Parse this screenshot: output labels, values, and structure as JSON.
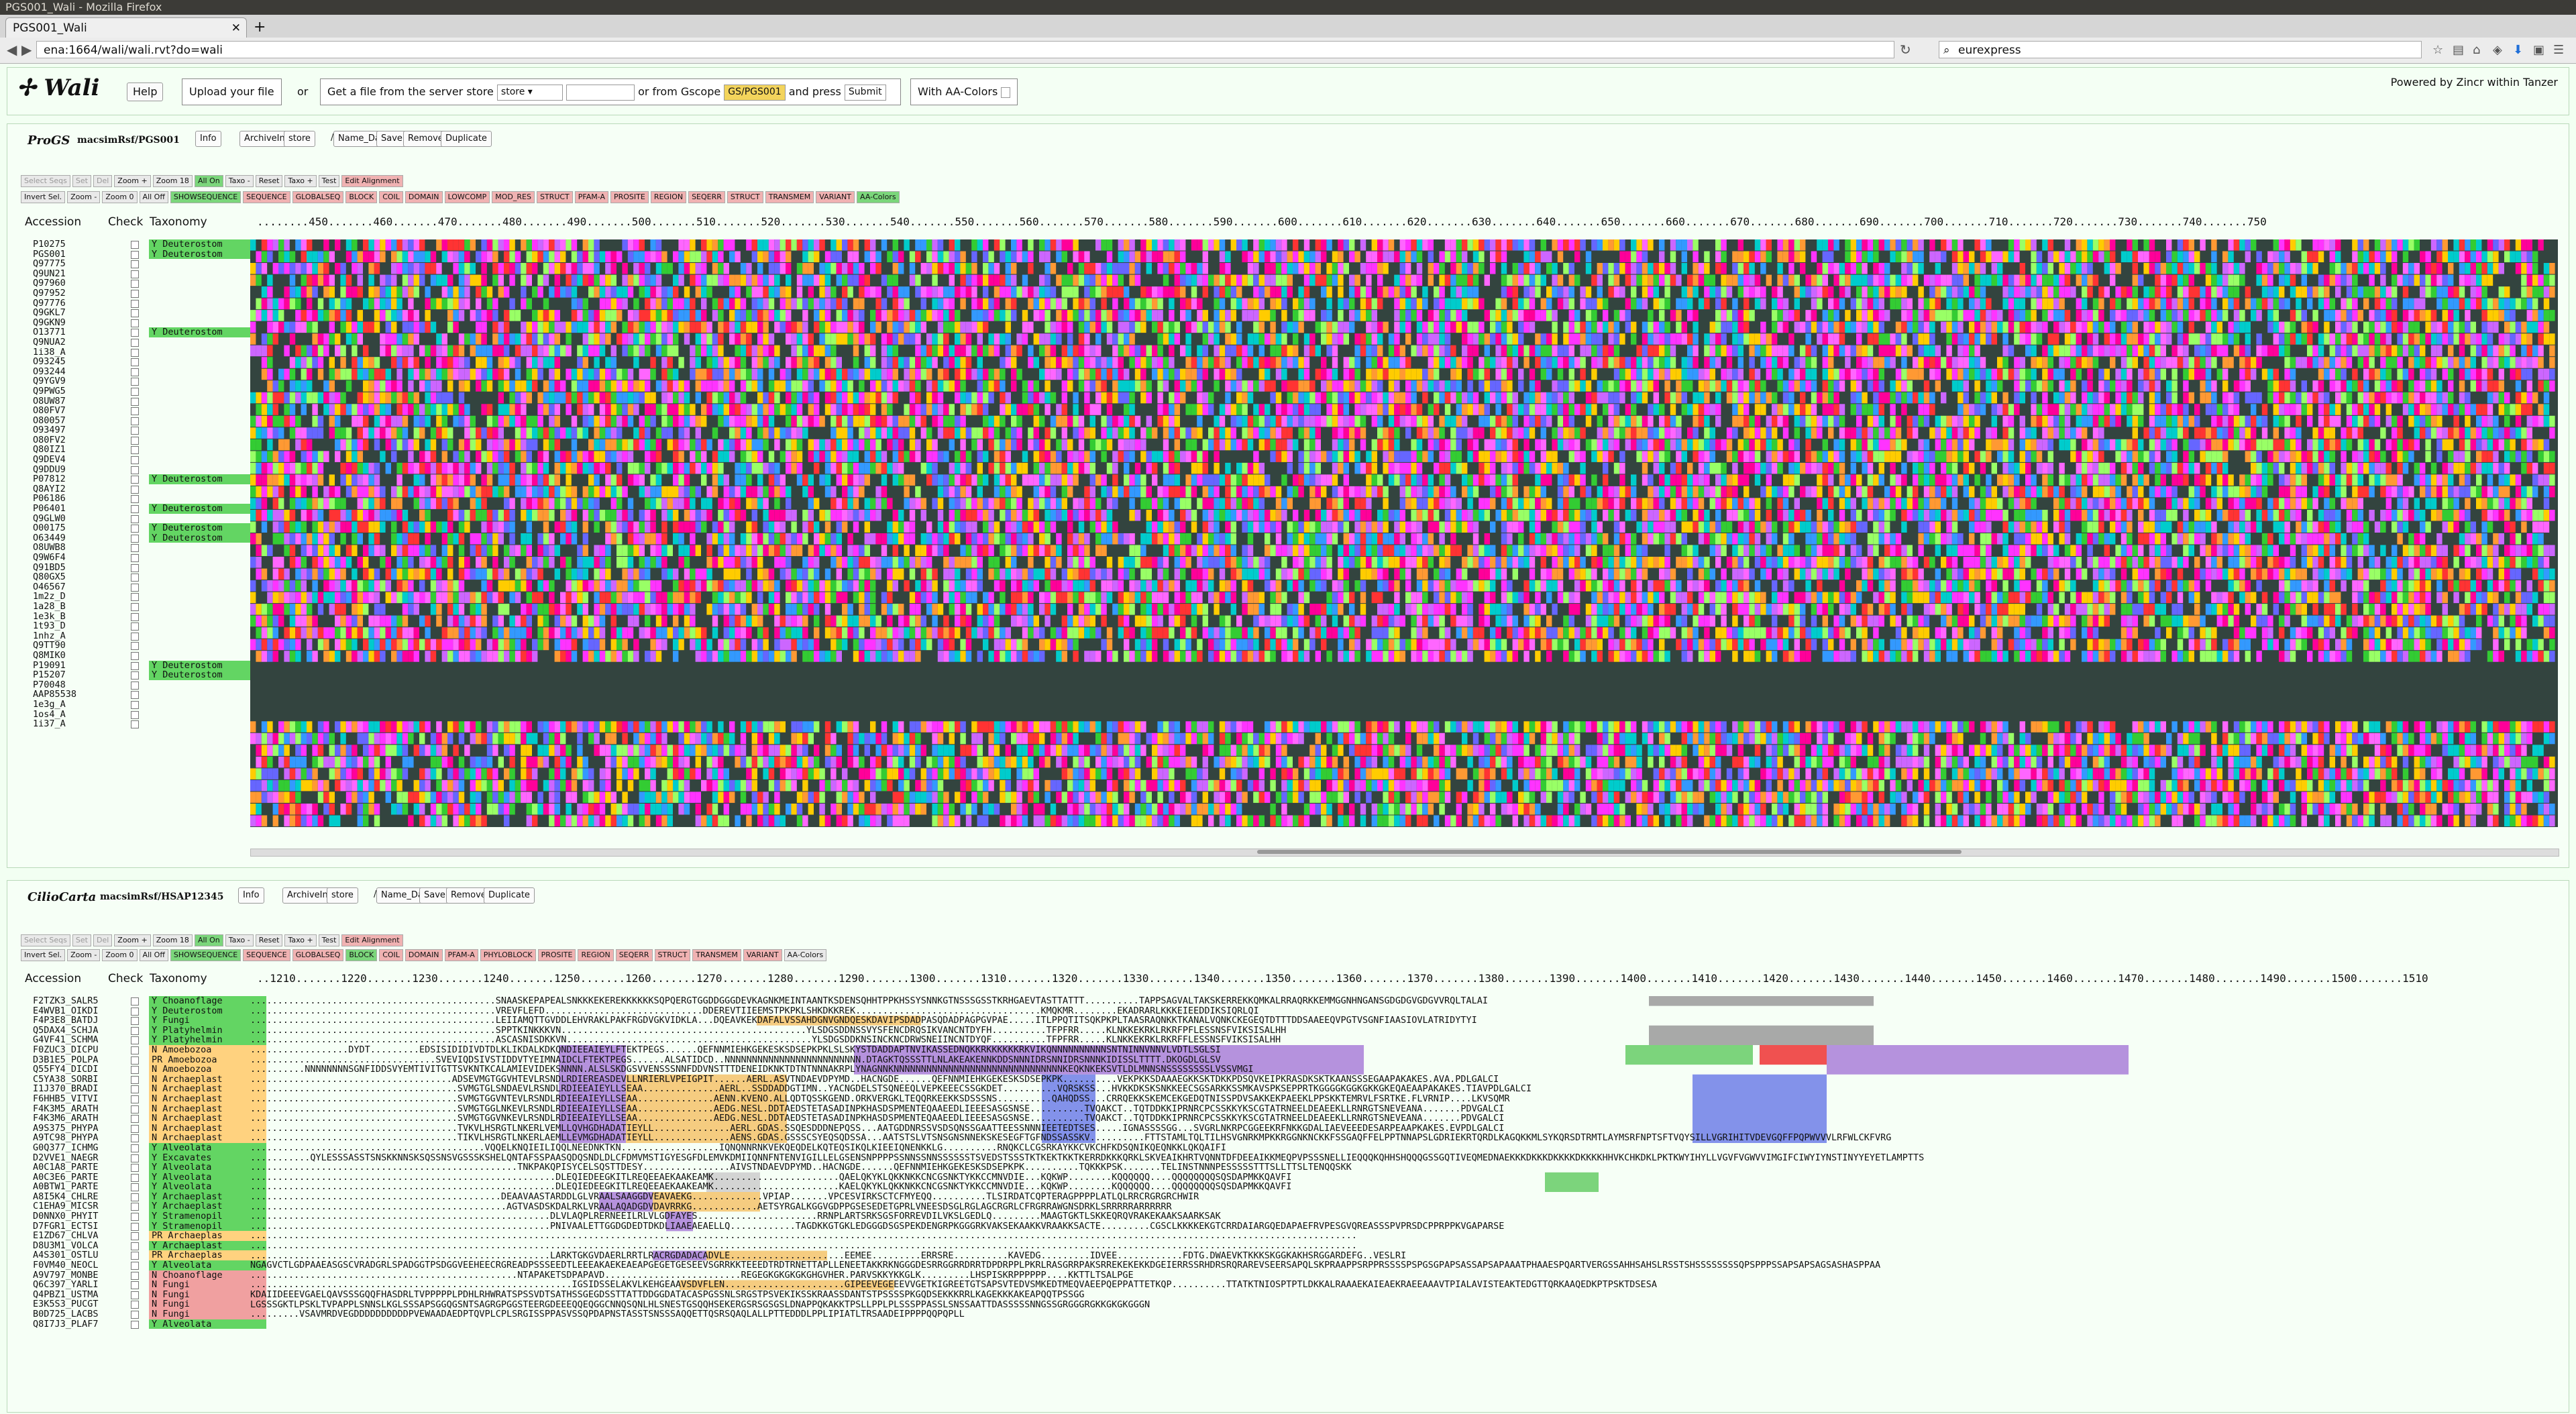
{
  "window": {
    "title": "PGS001_Wali - Mozilla Firefox",
    "tab_title": "PGS001_Wali",
    "url": "ena:1664/wali/wali.rvt?do=wali",
    "search": "eurexpress"
  },
  "header": {
    "logo": "Wali",
    "help": "Help",
    "upload": "Upload your file",
    "or1": "or",
    "getfile": "Get a file from the server store",
    "store": "store",
    "orfrom": "or from Gscope",
    "gscope": "GS/PGS001",
    "andpress": "and press",
    "submit": "Submit",
    "aacolors": "With AA-Colors",
    "powered": "Powered by Zincr within Tanzer"
  },
  "panel1": {
    "name": "ProGS",
    "path": "macsimRsf/PGS001",
    "buttons": [
      "Info",
      "ArchiveIn",
      "store",
      "/",
      "Name_Date",
      "Save",
      "Remove",
      "Duplicate"
    ],
    "tools_row1": [
      "Select Seqs",
      "Set",
      "Del",
      "Zoom +",
      "Zoom 18",
      "All On",
      "Taxo -",
      "Reset",
      "Taxo +",
      "Test",
      "Edit Alignment"
    ],
    "tools_row2": [
      "Invert Sel.",
      "Zoom -",
      "Zoom  0",
      "All Off",
      "SHOWSEQUENCE",
      "SEQUENCE",
      "GLOBALSEQ",
      "BLOCK",
      "COIL",
      "DOMAIN",
      "LOWCOMP",
      "MOD_RES",
      "STRUCT",
      "PFAM-A",
      "PROSITE",
      "REGION",
      "SEQERR",
      "STRUCT",
      "TRANSMEM",
      "VARIANT",
      "AA-Colors"
    ],
    "cols": [
      "Accession",
      "Check",
      "Taxonomy"
    ],
    "ruler": "........450.......460.......470.......480.......490.......500.......510.......520.......530.......540.......550.......560.......570.......580.......590.......600.......610.......620.......630.......640.......650.......660.......670.......680.......690.......700.......710.......720.......730.......740.......750"
  },
  "panel2": {
    "name": "CilioCarta",
    "path": "macsimRsf/HSAP12345",
    "buttons": [
      "Info",
      "ArchiveIn",
      "store",
      "/",
      "Name_Date",
      "Save",
      "Remove",
      "Duplicate"
    ],
    "tools_row1": [
      "Select Seqs",
      "Set",
      "Del",
      "Zoom +",
      "Zoom 18",
      "All On",
      "Taxo -",
      "Reset",
      "Taxo +",
      "Test",
      "Edit Alignment"
    ],
    "tools_row2": [
      "Invert Sel.",
      "Zoom -",
      "Zoom  0",
      "All Off",
      "SHOWSEQUENCE",
      "SEQUENCE",
      "GLOBALSEQ",
      "BLOCK",
      "COIL",
      "DOMAIN",
      "PFAM-A",
      "PHYLOBLOCK",
      "PROSITE",
      "REGION",
      "SEQERR",
      "STRUCT",
      "TRANSMEM",
      "VARIANT",
      "AA-Colors"
    ],
    "cols": [
      "Accession",
      "Check",
      "Taxonomy"
    ],
    "ruler": "..1210.......1220.......1230.......1240.......1250.......1260.......1270.......1280.......1290.......1300.......1310.......1320.......1330.......1340.......1350.......1360.......1370.......1380.......1390.......1400.......1410.......1420.......1430.......1440.......1450.......1460.......1470.......1480.......1490.......1500.......1510"
  },
  "seqs1": [
    {
      "acc": "P10275",
      "tax": "Y Deuterostom",
      "c": "green"
    },
    {
      "acc": "PGS001",
      "tax": "Y Deuterostom",
      "c": "green"
    },
    {
      "acc": "Q97775",
      "tax": "",
      "c": ""
    },
    {
      "acc": "Q9UN21",
      "tax": "",
      "c": ""
    },
    {
      "acc": "Q97960",
      "tax": "",
      "c": ""
    },
    {
      "acc": "Q97952",
      "tax": "",
      "c": ""
    },
    {
      "acc": "Q97776",
      "tax": "",
      "c": ""
    },
    {
      "acc": "Q9GKL7",
      "tax": "",
      "c": ""
    },
    {
      "acc": "Q9GKN9",
      "tax": "",
      "c": ""
    },
    {
      "acc": "O13771",
      "tax": "Y Deuterostom",
      "c": "green"
    },
    {
      "acc": "Q9NUA2",
      "tax": "",
      "c": ""
    },
    {
      "acc": "1i38_A",
      "tax": "",
      "c": ""
    },
    {
      "acc": "O93245",
      "tax": "",
      "c": ""
    },
    {
      "acc": "O93244",
      "tax": "",
      "c": ""
    },
    {
      "acc": "Q9YGV9",
      "tax": "",
      "c": ""
    },
    {
      "acc": "Q9PWG5",
      "tax": "",
      "c": ""
    },
    {
      "acc": "O8UW87",
      "tax": "",
      "c": ""
    },
    {
      "acc": "O80FV7",
      "tax": "",
      "c": ""
    },
    {
      "acc": "O80057",
      "tax": "",
      "c": ""
    },
    {
      "acc": "O93497",
      "tax": "",
      "c": ""
    },
    {
      "acc": "O80FV2",
      "tax": "",
      "c": ""
    },
    {
      "acc": "Q80IZ1",
      "tax": "",
      "c": ""
    },
    {
      "acc": "Q9DEV4",
      "tax": "",
      "c": ""
    },
    {
      "acc": "Q9DDU9",
      "tax": "",
      "c": ""
    },
    {
      "acc": "P07812",
      "tax": "Y Deuterostom",
      "c": "green"
    },
    {
      "acc": "Q8AYI2",
      "tax": "",
      "c": ""
    },
    {
      "acc": "P06186",
      "tax": "",
      "c": ""
    },
    {
      "acc": "P06401",
      "tax": "Y Deuterostom",
      "c": "green"
    },
    {
      "acc": "Q9GLW0",
      "tax": "",
      "c": ""
    },
    {
      "acc": "O00175",
      "tax": "Y Deuterostom",
      "c": "green"
    },
    {
      "acc": "O63449",
      "tax": "Y Deuterostom",
      "c": "green"
    },
    {
      "acc": "O8UWB8",
      "tax": "",
      "c": ""
    },
    {
      "acc": "Q9W6F4",
      "tax": "",
      "c": ""
    },
    {
      "acc": "Q91BD5",
      "tax": "",
      "c": ""
    },
    {
      "acc": "Q80GX5",
      "tax": "",
      "c": ""
    },
    {
      "acc": "O46567",
      "tax": "",
      "c": ""
    },
    {
      "acc": "1m2z_D",
      "tax": "",
      "c": ""
    },
    {
      "acc": "1a28_B",
      "tax": "",
      "c": ""
    },
    {
      "acc": "1e3k_B",
      "tax": "",
      "c": ""
    },
    {
      "acc": "1t93_D",
      "tax": "",
      "c": ""
    },
    {
      "acc": "1nhz_A",
      "tax": "",
      "c": ""
    },
    {
      "acc": "Q9TT90",
      "tax": "",
      "c": ""
    },
    {
      "acc": "Q8MIK0",
      "tax": "",
      "c": ""
    },
    {
      "acc": "P19091",
      "tax": "Y Deuterostom",
      "c": "green"
    },
    {
      "acc": "P15207",
      "tax": "Y Deuterostom",
      "c": "green"
    },
    {
      "acc": "P70048",
      "tax": "",
      "c": ""
    },
    {
      "acc": "AAP85538",
      "tax": "",
      "c": ""
    },
    {
      "acc": "1e3g_A",
      "tax": "",
      "c": ""
    },
    {
      "acc": "1os4_A",
      "tax": "",
      "c": ""
    },
    {
      "acc": "1i37_A",
      "tax": "",
      "c": ""
    }
  ],
  "seqs2": [
    {
      "acc": "F2TZK3_SALR5",
      "tax": "Y Choanoflage",
      "c": "green"
    },
    {
      "acc": "E4WVB1_OIKDI",
      "tax": "Y Deuterostom",
      "c": "green"
    },
    {
      "acc": "F4P3E8_BATDJ",
      "tax": "Y Fungi",
      "c": "green"
    },
    {
      "acc": "Q5DAX4_SCHJA",
      "tax": "Y Platyhelmin",
      "c": "green"
    },
    {
      "acc": "G4VF41_SCHMA",
      "tax": "Y Platyhelmin",
      "c": "green"
    },
    {
      "acc": "F0ZUC3_DICPU",
      "tax": "N Amoebozoa",
      "c": "orange"
    },
    {
      "acc": "D3B1E5_POLPA",
      "tax": "PR Amoebozoa",
      "c": "orange"
    },
    {
      "acc": "Q55FY4_DICDI",
      "tax": "N Amoebozoa",
      "c": "orange"
    },
    {
      "acc": "C5YA38_SORBI",
      "tax": "N Archaeplast",
      "c": "orange"
    },
    {
      "acc": "I1J370_BRADI",
      "tax": "N Archaeplast",
      "c": "orange"
    },
    {
      "acc": "F6HHB5_VITVI",
      "tax": "N Archaeplast",
      "c": "orange"
    },
    {
      "acc": "F4K3M5_ARATH",
      "tax": "N Archaeplast",
      "c": "orange"
    },
    {
      "acc": "F4K3M6_ARATH",
      "tax": "N Archaeplast",
      "c": "orange"
    },
    {
      "acc": "A9S375_PHYPA",
      "tax": "N Archaeplast",
      "c": "orange"
    },
    {
      "acc": "A9TC98_PHYPA",
      "tax": "N Archaeplast",
      "c": "orange"
    },
    {
      "acc": "G0Q377_ICHMG",
      "tax": "Y Alveolata",
      "c": "green"
    },
    {
      "acc": "D2VVE1_NAEGR",
      "tax": "Y Excavates",
      "c": "green"
    },
    {
      "acc": "A0C1A8_PARTE",
      "tax": "Y Alveolata",
      "c": "green"
    },
    {
      "acc": "A0C3E6_PARTE",
      "tax": "Y Alveolata",
      "c": "green"
    },
    {
      "acc": "A0BTW1_PARTE",
      "tax": "Y Alveolata",
      "c": "green"
    },
    {
      "acc": "A8I5K4_CHLRE",
      "tax": "Y Archaeplast",
      "c": "green"
    },
    {
      "acc": "C1EHA9_MICSR",
      "tax": "Y Archaeplast",
      "c": "green"
    },
    {
      "acc": "D0NNX0_PHYIT",
      "tax": "Y Stramenopil",
      "c": "green"
    },
    {
      "acc": "D7FGR1_ECTSI",
      "tax": "Y Stramenopil",
      "c": "green"
    },
    {
      "acc": "E1ZD67_CHLVA",
      "tax": "PR Archaeplas",
      "c": "orange"
    },
    {
      "acc": "D8U3M1_VOLCA",
      "tax": "Y Archaeplast",
      "c": "green"
    },
    {
      "acc": "A4S301_OSTLU",
      "tax": "PR Archaeplas",
      "c": "orange"
    },
    {
      "acc": "F0VM40_NEOCL",
      "tax": "Y Alveolata",
      "c": "green"
    },
    {
      "acc": "A9V797_MONBE",
      "tax": "N Choanoflage",
      "c": "red"
    },
    {
      "acc": "Q6C397_YARLI",
      "tax": "N Fungi",
      "c": "red"
    },
    {
      "acc": "Q4PBZ1_USTMA",
      "tax": "N Fungi",
      "c": "red"
    },
    {
      "acc": "E3K5S3_PUCGT",
      "tax": "N Fungi",
      "c": "red"
    },
    {
      "acc": "B0D725_LACBS",
      "tax": "N Fungi",
      "c": "red"
    },
    {
      "acc": "Q8I7J3_PLAF7",
      "tax": "Y Alveolata",
      "c": "green"
    }
  ],
  "aln2": [
    ".............................................SNAASKEPAPEALSNKKKEKEREKKKKKKSQPQERGTGGDDGGGDEVKAGNKMEINTAANTKSDENSQHHTPPKHSSYSNNKGTNSSSGSSTKRHGAEVTASTTATTT..........TAPPSAGVALTAKSKERREKKQMKALRRAQRKKEMMGGNHNGANSGDGDGVGDGVVRQLTALAI",
    ".............................................VREVFLEFD.............................DDEREVTIIEEMSTPKPKLSHKDKKREK..................................KMQKMR........EKADRARLKKKEIEEDDIKSIQRLQI",
    ".............................................LEIIAMQTTGVDDLEHVRAKLPAKFRGDVGKVIDKLA...DQEAVKEKDAFALVSSAHDGNVGNDQESKDAVIPSDADPASQDADPAGPGVPAE.....ITLPPQTITSQKPKPLTAASRAQNKKTKANALVQNKCKEGEQTDTTTDDSAAEEQVPGTVSGNFIAASIOVLATRIDYTYI",
    ".............................................SPPTKINKKKVN.............................................YLSDGSDDNSSVYSFENCDRQSIKVANCNTDYFH..........TFPFRR.....KLNKKEKRKLRKRFPFLESSNSFVIKSISALHH",
    ".............................................ASCASNISDKKVN.............................................YLSDGSDDKNSINCKNCDRWSNEIINCNTDYQF..........TFPFRR.....KLNKKEKRKLRKRFFLESSNSFVIKSISALHH",
    "..................DYDT.........EDSISIDIDIVDTDLKLIKDALKDKQNDIEEAIEYLFTEKTPEGS......QEFNNMIEHKGEKESKSDSEPKPKLSLSKYSTDADDAPTNVIKASSEDNQKKRKKKKKKRKVIKQNNNNNNNNNNSNTNINNVNNVLVDTLSGLSI",
    "..................................SVEVIQDSIVSTIDDVTYEIMNAIDCLFTEKTPEGS......ALSATIDCD..NNNNNNNNNNNNNNNNNNNNNNNNN.DTAGKTQSSSTTLNLAKEAKENNKDDSNNNIDRSNNIDRSNNNKIDISSLTTTT.DKOGDLGLSV",
    "..........NNNNNNNNSGNFIDDSVYEMTIVITGTTSVKNTKCALAMIEVIDEKSNNNN.ALSLSKDGSVVENSSSNNFDDVNSTTTDENEIDKNKTDTNTNNNAKRPLYNAGNNKNNNNNNNNNNNNNNNNNNNNNNNNNNNNNNNKEQKNKEKSVTLDLMNNSNSSSSSSSSLVSSVMGI",
    ".....................................ADSEVMGTGGVHTEVLRSNDLRDIEREASDEVLLNRIERLVPEIGPIT......AERL.ASVTNDAEVDPYMD..HACNGDE......QEFNNMIEHKGEKESKSDSEPKPK..........VEKPKKSDAAAEGKKSKTDKKPDSQVKEIPKRASDKSKTKAANSSSEGAAPAKAKES.AVA.PDLGALCI",
    "......................................SVMGTGLSNDAEVLRSNDLRDIEEAIEYLLSEAA..............AERL..SSDDADDGTIMN..YACNGDELSTSQNEEQLVEPKEEECSSGKDET..........VQRSKSS...HVKKDKSKSNKKEECSGSARKKSSMKAVSPKSEPPRTKGGGGKGGKGKKGKEQAEAAPAKAKES.TIAVPDLGALCI",
    "......................................SVMGTGGVNTEVLRSNDLRDIEEAIEYLLSEAA..............AENN.KVENO.ALLQDTQSSKGEND.ORKVERGKLTEQQRKEEKKSDSSSNS..........QAHQDSS...CRRQEKKSKEMCEKGEDQTNISSPDVSAKKEKPAEEKLPPSKKTEMRVLFSRTKE.FLVRNIP....LKVSQMR",
    "......................................SVMGTGGLNKEVLRSNDLRDIEEAIEYLLSEAA..............AEDG.NESL.DDTAEDSTETASADINPKHASDSPMENTEQAAEEDLIEEESASGSNSE..........TVQAKCT..TQTDDKKIPRNRCPCSSKKYKSCGTATRNEELDEAEEKLLRNRGTSNEVEANA.......PDVGALCI",
    "......................................SVMGTGGVNKEVLRSNDLRDIEEAIEYLLSEAA..............AEDG.NESL.DDTAEDSTETASADINPKHASDSPMENTEQAAEEDLIEEESASGSNSE..........TVQAKCT..TQTDDKKIPRNRCPCSSKKYKSCGTATRNEELDEAEEKLLRNRGTSNEVEANA.......PDVGALCI",
    "......................................TVKVLHSRGTLNKERLVEMLLQVHGDHADATIEYLL..............AERL.GDAS.SSQESDDDNEPQSS...AATGDDNRSSVSDSQNSSGAATTEESSNNNIEETEDTSES.....IGNASSSSGG...SVGRLNKRPCGGEEKRFNKKGDALIAEVEEEDESARPEAAPKAKES.EVPDLGALCI",
    "......................................TIKVLHSRGTLNKERLAEMLLEVMGDHADATIEYLL..............AENS.GDAS.GSSSCSYEQSQDSSA...AATSTSLVTSNSGNSNNEKSKESEGFTGFNDSSASSKV..........FTTSTAMLTQLTILHSVGNRKMPKKRGGNKNCKKFSSGAQFFELPPTNNAPSLGDRIEKRTQRDLKAGQKKMLSYKQRSDTRMTLAYMSRFNPTSFTVQYSILLVGRIHITVDEVGQFFPQPWVVVLRFWLCKFVRG",
    "...........................................VQQELKNQIEILIQQLNEEDNKTKN..................IQNQNNRNKVEKQEQDELKQTEQSIKQLKIEEIQNENKKLG..........RNQKCLCGSRKAYKKCVKCHFKDSQNIKQEQNKKLQKQAIFI",
    "...........QYLESSSASSTSNSKKNNSKSQSSNSVGSSSKSHELQNTAFSSPAASQDQSNDLDLCFDMVMSTIGYESGFDLEMVKDMIIQNNFNTENVIGILLELGSENSNPPPPSSNNSSNNSSSSSSTSVEDSTSSSTKTKEKTKKTKERRDKKKQRKLSKVEAIKHRTVQNNTDFDEEAIKKMEQPVPSSSNELLIEQQQKQHHSHQQQGSSGQTIVEQMEDNAEKKKDKKKDKKKKDKKKKHHVKCHKDKLPKTKWYIHYLLVGVFVGWVVIMGIFCIWYIYNSTINYYEYETLAMPTTS",
    ".................................................TNKPAKQPISYCELSQSTTDESY................AIVSTNDAEVDPYMD..HACNGDE......QEFNNMIEHKGEKESKSDSEPKPK..........TQKKKPSK.......TELINSTNNNPESSSSSTTTSLLTTSLTENQQSKK",
    "........................................................DLEQIEDEEGKITLREQEEAEKAAKEAMK.......................QAELQKYKLQKKNKKCNCGSNKTYKKCCMNVDIE...KQKWP........KQQQQQQ....QQQQQQQQSQSDAPMKKQAVFI",
    "........................................................DLEQIEDEEGKITLREQEEAEKAAKEAMK.......................KAELQKYKLQKKNKKCNCGSNKTYKKCCMNVDIE...KQKWP........KQQQQQQ....QQQQQQQQSQSDAPMKKQAVFI",
    "..............................................DEAAVAASTARDDLGLVRAALSAAGGDVEAVAEKG.............VPIAP.......VPCESVIRKSCTCFMYEQQ..........TLSIRDATCQPTERAGPPPPLATLQLRRCRGRGRCHWIR",
    "...............................................AGTVASDSKDALRKLVRAALAQADGDVDAVRRKG............AETSYRGALKGGVGDPPGSESEDETGPRLVNEESDSGLRGLAGCRGRLCFRGRRAWGNSDRKLSRRRRRARRRRRR",
    ".......................................................DLVLAQPLRERNEEILRLVLGDFAYES......................RRNPLARTSRKSGSFORREVDILVKSLGEDLQ.........MAAGTGKTLSKKEQRQVRAKEKAAKSAARKSAK",
    ".......................................................PNIVAALETTGGDGDEDTDKDLIAAEAEAELLQ............TAGDKKGTGKLEDGGGDSGSPEKDENGRPKGGGRKVAKSEKAAKKVRAAKKSACTE.........CGSCLKKKKEKGTCRRDAIARGQEDAPAEFRVPESGVQREASSSPVPRSDCPPRPPKVGAPARSE",
    "...........................................................................................................................................................................................................",
    "...........................................................................................................................................................................................................",
    ".......................................................LARKTGKGVDAERLRRTLRACRGDADACADVLE.....................EEMEE.........ERRSRE..........KAVEDG.........IDVEE............FDTG.DWAEVKTKKKSKGGKAKHSRGGARDEFG..VESLRI",
    "NGAGVCTLGDPAAEASGSCVRADGRLSPADGGTPSDGGVEEHEECRGREADPSSSEEDTLEEEAKAEKEAEAPGEGETGESEEVSGRRKKTEEEDTRDTRNETTAPLLENEETAKKRKNGGGDESRRGGRRDRRTDPDRPPLPKRLRASGRRPAKSRREKEKEKKDGEIERRSSRHDRSRQRAREVSEERSAPQLSKPRAAPPSRPPRSSSSPSPGSGPAPSASSAPSAPAAATPHAAESPQARTVERGSSAHHSAHSLRSSTSHSSSSSSSSQPSPPPSSAPSAPSAGSASHASPPAA",
    ".................................................NTAPAKETSDPAPAVD.........................REGEGKGKGKGKGHGVHER.PARVSKKYKKGLK.........LHSPISKRPPPPPP....KKTTLTSALPGE",
    "...........................................................IGSIDSSELAKVLKEHGEAAVSDVFLEN......................GIPEEVEGEEEVVGETKIGREETGTSAPSVTEDVSMKEDTMEQVAEEPQEPPATTETKQP..........TTATKTNIOSPTPTLDKKALRAAAEKAIEAEKRAEEAAAVTPIALAVISTEAKTEDGTTQRKAAQEDKPTPSKTDSESA",
    "KDAIIDEEEVGAELQAVSSSGQQFHASDRLTVPPPPPLPDHLRHWRATSPSSVDTSATHSSGEGDSSTTATTDDGGDATACASPGSSNLSRGSTPSVEKIKSSKRAASSDANTSTPSSSSPKGQDSEKKKRRLKAGEKKKAKEAPQQTPSSGG",
    "LGSSSGKTLPSKLTVPAPPLSNNSLKGLSSSAPSGGQGSNTSAGRGPGGSTEERGDEEEQQEQGGCNNQSQNLHLSNESTGSQQHSEKERGSRSGSGSLDNAPPQKAKKTPSLLPPLPLSSSPPASSLSNSSAATTDASSSSSNNGSSGRGGGRGKKGKGKGGGN",
    ".........VSAVMRDVEGDDDDDDDDDDPVEWAADAEDPTQVPLCPLSRGISSPPASVSSQPDAPNSTASSTSNSSSAQQETTQSRSQAQLALLPTTEDDDLPPLIPIATLTRSAADEIPPPPQQPQPLL"
  ]
}
